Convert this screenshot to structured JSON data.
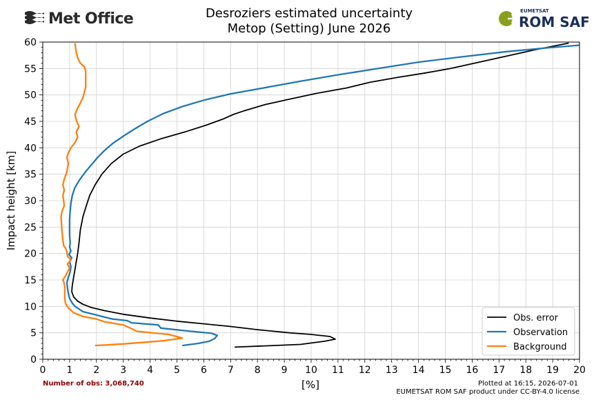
{
  "header": {
    "left_logo_text": "Met Office",
    "right_logo_small": "EUMETSAT",
    "right_logo_text": "ROM SAF"
  },
  "footer": {
    "obs_count": "Number of obs: 3,068,740",
    "plotted_at": "Plotted at 16:15, 2026-07-01",
    "license": "EUMETSAT ROM SAF product under CC-BY-4.0 license"
  },
  "colors": {
    "obs_error": "#000000",
    "observation": "#1f77b4",
    "background": "#ff7f0e",
    "grid": "#d0d0d0"
  },
  "chart_data": {
    "type": "line",
    "title": "Desroziers estimated uncertainty",
    "subtitle": "Metop (Setting) June 2026",
    "xlabel": "[%]",
    "ylabel": "Impact height [km]",
    "xlim": [
      0,
      20
    ],
    "ylim": [
      0,
      60
    ],
    "xticks": [
      0,
      1,
      2,
      3,
      4,
      5,
      6,
      7,
      8,
      9,
      10,
      11,
      12,
      13,
      14,
      15,
      16,
      17,
      18,
      19,
      20
    ],
    "yticks": [
      0,
      5,
      10,
      15,
      20,
      25,
      30,
      35,
      40,
      45,
      50,
      55,
      60
    ],
    "grid": true,
    "legend_position": "bottom-right",
    "series": [
      {
        "name": "Obs. error",
        "color": "#000000",
        "points": [
          [
            7.15,
            2.3
          ],
          [
            9.6,
            2.8
          ],
          [
            10.5,
            3.4
          ],
          [
            10.9,
            3.8
          ],
          [
            10.7,
            4.3
          ],
          [
            10.0,
            4.7
          ],
          [
            9.2,
            5.0
          ],
          [
            8.0,
            5.6
          ],
          [
            7.0,
            6.2
          ],
          [
            6.0,
            6.7
          ],
          [
            5.0,
            7.2
          ],
          [
            4.0,
            7.8
          ],
          [
            3.0,
            8.5
          ],
          [
            2.3,
            9.2
          ],
          [
            1.8,
            9.8
          ],
          [
            1.5,
            10.4
          ],
          [
            1.3,
            11.0
          ],
          [
            1.15,
            11.8
          ],
          [
            1.08,
            12.8
          ],
          [
            1.1,
            14.0
          ],
          [
            1.15,
            15.5
          ],
          [
            1.2,
            17.0
          ],
          [
            1.25,
            18.5
          ],
          [
            1.3,
            20.0
          ],
          [
            1.35,
            22.0
          ],
          [
            1.4,
            24.5
          ],
          [
            1.5,
            27.0
          ],
          [
            1.62,
            29.0
          ],
          [
            1.75,
            31.0
          ],
          [
            1.95,
            33.0
          ],
          [
            2.2,
            35.0
          ],
          [
            2.55,
            37.0
          ],
          [
            3.0,
            38.8
          ],
          [
            3.6,
            40.3
          ],
          [
            4.4,
            41.7
          ],
          [
            5.3,
            43.0
          ],
          [
            6.1,
            44.3
          ],
          [
            6.7,
            45.4
          ],
          [
            7.1,
            46.3
          ],
          [
            7.5,
            47.0
          ],
          [
            8.3,
            48.2
          ],
          [
            9.1,
            49.1
          ],
          [
            10.2,
            50.3
          ],
          [
            11.3,
            51.3
          ],
          [
            12.2,
            52.4
          ],
          [
            13.2,
            53.3
          ],
          [
            14.2,
            54.1
          ],
          [
            15.2,
            55.0
          ],
          [
            16.0,
            55.9
          ],
          [
            16.8,
            56.8
          ],
          [
            17.6,
            57.7
          ],
          [
            18.3,
            58.5
          ],
          [
            19.0,
            59.2
          ],
          [
            19.6,
            59.8
          ]
        ]
      },
      {
        "name": "Observation",
        "color": "#1f77b4",
        "points": [
          [
            5.2,
            2.6
          ],
          [
            5.8,
            3.0
          ],
          [
            6.2,
            3.4
          ],
          [
            6.4,
            3.9
          ],
          [
            6.5,
            4.5
          ],
          [
            6.3,
            4.9
          ],
          [
            5.3,
            5.4
          ],
          [
            4.4,
            5.9
          ],
          [
            4.3,
            6.5
          ],
          [
            3.3,
            6.9
          ],
          [
            3.15,
            7.3
          ],
          [
            2.6,
            7.6
          ],
          [
            2.2,
            8.1
          ],
          [
            1.9,
            8.5
          ],
          [
            1.5,
            9.0
          ],
          [
            1.35,
            9.5
          ],
          [
            1.2,
            10.0
          ],
          [
            1.1,
            10.6
          ],
          [
            1.0,
            11.5
          ],
          [
            0.95,
            12.5
          ],
          [
            0.92,
            13.5
          ],
          [
            0.9,
            14.5
          ],
          [
            0.95,
            15.5
          ],
          [
            1.02,
            16.5
          ],
          [
            1.05,
            17.5
          ],
          [
            1.0,
            18.5
          ],
          [
            1.08,
            19.2
          ],
          [
            0.98,
            19.8
          ],
          [
            1.05,
            20.5
          ],
          [
            1.0,
            21.2
          ],
          [
            1.02,
            22.0
          ],
          [
            1.0,
            23.5
          ],
          [
            1.0,
            25.0
          ],
          [
            1.0,
            26.5
          ],
          [
            1.02,
            28.0
          ],
          [
            1.05,
            29.5
          ],
          [
            1.1,
            31.0
          ],
          [
            1.2,
            32.5
          ],
          [
            1.38,
            34.0
          ],
          [
            1.6,
            35.5
          ],
          [
            1.85,
            37.0
          ],
          [
            2.05,
            38.2
          ],
          [
            2.3,
            39.5
          ],
          [
            2.6,
            40.8
          ],
          [
            3.0,
            42.2
          ],
          [
            3.4,
            43.5
          ],
          [
            3.9,
            45.0
          ],
          [
            4.5,
            46.5
          ],
          [
            5.2,
            47.8
          ],
          [
            6.0,
            49.0
          ],
          [
            7.0,
            50.2
          ],
          [
            8.2,
            51.3
          ],
          [
            9.5,
            52.5
          ],
          [
            11.0,
            53.8
          ],
          [
            12.5,
            55.0
          ],
          [
            14.0,
            56.2
          ],
          [
            15.6,
            57.2
          ],
          [
            17.3,
            58.2
          ],
          [
            18.8,
            58.9
          ],
          [
            20.0,
            59.4
          ]
        ]
      },
      {
        "name": "Background",
        "color": "#ff7f0e",
        "points": [
          [
            1.95,
            2.6
          ],
          [
            3.0,
            2.9
          ],
          [
            4.5,
            3.5
          ],
          [
            5.2,
            4.0
          ],
          [
            4.7,
            4.7
          ],
          [
            3.5,
            5.3
          ],
          [
            3.3,
            5.8
          ],
          [
            3.0,
            6.5
          ],
          [
            2.3,
            7.1
          ],
          [
            2.0,
            7.6
          ],
          [
            1.5,
            8.1
          ],
          [
            1.15,
            8.8
          ],
          [
            0.95,
            9.7
          ],
          [
            0.85,
            10.5
          ],
          [
            0.82,
            11.4
          ],
          [
            0.82,
            12.5
          ],
          [
            0.82,
            13.6
          ],
          [
            0.8,
            14.4
          ],
          [
            0.75,
            15.0
          ],
          [
            0.85,
            15.8
          ],
          [
            0.92,
            16.5
          ],
          [
            1.0,
            17.2
          ],
          [
            0.92,
            18.0
          ],
          [
            1.05,
            18.8
          ],
          [
            0.92,
            19.5
          ],
          [
            0.9,
            20.3
          ],
          [
            0.85,
            21.0
          ],
          [
            0.78,
            21.5
          ],
          [
            0.75,
            22.5
          ],
          [
            0.72,
            24.0
          ],
          [
            0.7,
            25.5
          ],
          [
            0.68,
            27.0
          ],
          [
            0.72,
            28.0
          ],
          [
            0.8,
            29.0
          ],
          [
            0.78,
            30.0
          ],
          [
            0.75,
            31.0
          ],
          [
            0.8,
            32.0
          ],
          [
            0.75,
            33.0
          ],
          [
            0.8,
            34.0
          ],
          [
            0.9,
            35.5
          ],
          [
            0.95,
            37.0
          ],
          [
            0.9,
            38.2
          ],
          [
            0.95,
            39.0
          ],
          [
            1.05,
            40.0
          ],
          [
            1.2,
            41.0
          ],
          [
            1.3,
            42.0
          ],
          [
            1.25,
            43.0
          ],
          [
            1.35,
            44.0
          ],
          [
            1.25,
            45.2
          ],
          [
            1.2,
            46.3
          ],
          [
            1.3,
            47.5
          ],
          [
            1.4,
            48.5
          ],
          [
            1.5,
            49.5
          ],
          [
            1.55,
            50.5
          ],
          [
            1.6,
            51.5
          ],
          [
            1.6,
            52.5
          ],
          [
            1.6,
            53.5
          ],
          [
            1.6,
            54.5
          ],
          [
            1.55,
            55.3
          ],
          [
            1.4,
            56.0
          ],
          [
            1.3,
            57.0
          ],
          [
            1.25,
            58.0
          ],
          [
            1.22,
            59.0
          ],
          [
            1.2,
            59.8
          ]
        ]
      }
    ]
  }
}
